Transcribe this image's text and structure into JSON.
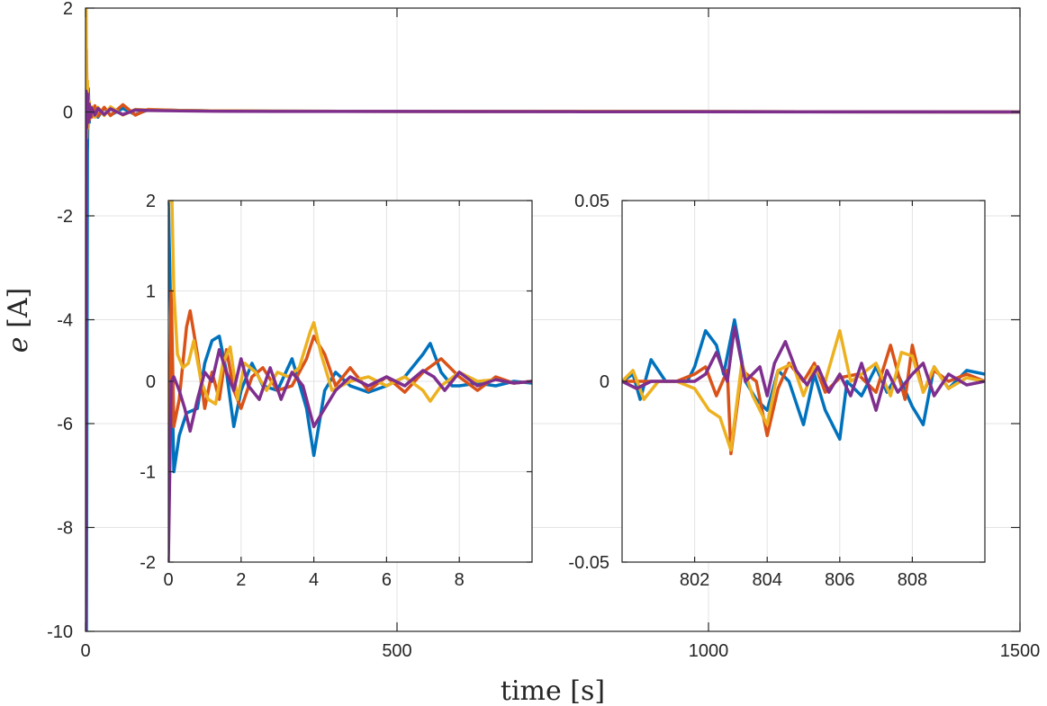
{
  "chart_data": [
    {
      "id": "main",
      "type": "line",
      "title": "",
      "xlabel": "time [s]",
      "ylabel_symbol": "e",
      "ylabel_unit": "[A]",
      "xlim": [
        0,
        1500
      ],
      "ylim": [
        -10,
        2
      ],
      "xticks": [
        0,
        500,
        1000,
        1500
      ],
      "xtick_labels": [
        "0",
        "500",
        "1000",
        "1500"
      ],
      "yticks": [
        -10,
        -8,
        -6,
        -4,
        -2,
        0,
        2
      ],
      "ytick_labels": [
        "-10",
        "-8",
        "-6",
        "-4",
        "-2",
        "0",
        "2"
      ],
      "grid": true,
      "series": [
        {
          "name": "series-blue",
          "color": "#0072BD",
          "x": [
            0,
            1.5,
            3,
            4.5,
            6,
            8,
            10,
            15,
            20,
            30,
            40,
            60,
            80,
            100,
            150,
            200,
            300,
            500,
            800,
            1500
          ],
          "y": [
            2,
            -10,
            -0.8,
            0.45,
            -0.2,
            0.1,
            -0.08,
            0.1,
            -0.1,
            0.08,
            -0.06,
            0.07,
            -0.05,
            0.04,
            0.03,
            0.02,
            0.015,
            0.01,
            0.01,
            0
          ]
        },
        {
          "name": "series-orange",
          "color": "#D95319",
          "x": [
            0,
            1.5,
            3,
            4.5,
            6,
            8,
            10,
            15,
            20,
            30,
            40,
            60,
            80,
            100,
            150,
            200,
            300,
            500,
            800,
            1500
          ],
          "y": [
            -1.5,
            1.2,
            -0.3,
            0.3,
            -0.15,
            0.1,
            -0.1,
            0.12,
            -0.08,
            0.09,
            -0.07,
            0.14,
            -0.06,
            0.05,
            0.03,
            0.02,
            0.015,
            0.01,
            0.01,
            0
          ]
        },
        {
          "name": "series-yellow",
          "color": "#EDB120",
          "x": [
            0,
            1,
            2,
            3,
            4.5,
            6,
            8,
            10,
            15,
            20,
            30,
            40,
            60,
            80,
            100,
            150,
            200,
            300,
            500,
            800,
            1500
          ],
          "y": [
            2,
            2,
            -0.5,
            0.6,
            -0.3,
            0.2,
            -0.1,
            0.1,
            -0.1,
            0.09,
            -0.07,
            0.1,
            -0.06,
            0.05,
            0.04,
            0.03,
            0.02,
            0.015,
            0.01,
            0.01,
            0
          ]
        },
        {
          "name": "series-purple",
          "color": "#7E2F8E",
          "x": [
            0,
            1,
            2,
            3,
            4.5,
            6,
            8,
            10,
            15,
            20,
            30,
            40,
            60,
            80,
            100,
            150,
            200,
            300,
            500,
            800,
            1500
          ],
          "y": [
            -10,
            0.4,
            -0.3,
            0.35,
            -0.2,
            0.15,
            -0.1,
            0.08,
            -0.06,
            0.07,
            -0.05,
            0.06,
            -0.05,
            0.04,
            0.03,
            0.02,
            0.015,
            0.01,
            0.01,
            0.005,
            0
          ]
        }
      ]
    },
    {
      "id": "inset1",
      "type": "line",
      "title": "",
      "xlim": [
        0,
        10
      ],
      "ylim": [
        -2,
        2
      ],
      "xticks": [
        0,
        2,
        4,
        6,
        8
      ],
      "xtick_labels": [
        "0",
        "2",
        "4",
        "6",
        "8"
      ],
      "yticks": [
        -2,
        -1,
        0,
        1,
        2
      ],
      "ytick_labels": [
        "-2",
        "-1",
        "0",
        "1",
        "2"
      ],
      "grid": true,
      "series": [
        {
          "name": "series-blue",
          "color": "#0072BD",
          "x": [
            0,
            0.08,
            0.15,
            0.3,
            0.5,
            0.8,
            1.0,
            1.2,
            1.4,
            1.6,
            1.8,
            2.0,
            2.3,
            2.6,
            3.0,
            3.4,
            3.8,
            4.0,
            4.3,
            4.6,
            5.0,
            5.5,
            6.0,
            6.5,
            7.0,
            7.2,
            7.5,
            7.8,
            8.0,
            8.5,
            9.0,
            9.5,
            10
          ],
          "y": [
            2,
            0.5,
            -1.0,
            -0.6,
            -0.35,
            -0.3,
            0.2,
            0.45,
            0.5,
            0.1,
            -0.5,
            -0.1,
            0.2,
            -0.05,
            -0.1,
            0.25,
            -0.3,
            -0.82,
            -0.1,
            0.1,
            -0.05,
            -0.12,
            -0.05,
            0.05,
            0.3,
            0.42,
            0.1,
            -0.05,
            -0.05,
            -0.02,
            -0.05,
            0.0,
            -0.02
          ]
        },
        {
          "name": "series-orange",
          "color": "#D95319",
          "x": [
            0,
            0.08,
            0.15,
            0.3,
            0.5,
            0.6,
            0.8,
            1.0,
            1.2,
            1.4,
            1.6,
            1.8,
            2.0,
            2.3,
            2.6,
            3.0,
            3.4,
            3.8,
            4.0,
            4.3,
            4.6,
            5.0,
            5.5,
            6.0,
            6.5,
            7.0,
            7.5,
            8.0,
            8.5,
            9.0,
            9.5,
            10
          ],
          "y": [
            -1.5,
            1.0,
            -0.5,
            -0.2,
            0.6,
            0.78,
            0.3,
            -0.3,
            0.1,
            -0.2,
            0.35,
            -0.1,
            -0.3,
            0.05,
            0.15,
            -0.1,
            -0.05,
            0.25,
            0.5,
            0.3,
            -0.05,
            0.15,
            -0.1,
            0.05,
            -0.12,
            0.1,
            0.25,
            0.05,
            -0.1,
            0.05,
            -0.02,
            0.0
          ]
        },
        {
          "name": "series-yellow",
          "color": "#EDB120",
          "x": [
            0,
            0.05,
            0.1,
            0.15,
            0.25,
            0.4,
            0.55,
            0.7,
            0.9,
            1.1,
            1.3,
            1.5,
            1.7,
            1.9,
            2.1,
            2.4,
            2.7,
            3.0,
            3.3,
            3.6,
            3.9,
            4.0,
            4.2,
            4.5,
            5.0,
            5.5,
            6.0,
            6.5,
            7.0,
            7.2,
            7.5,
            8.0,
            8.5,
            9.0,
            9.5,
            10
          ],
          "y": [
            2,
            2,
            2,
            1.0,
            0.3,
            0.15,
            0.2,
            0.45,
            0.0,
            -0.2,
            -0.25,
            0.2,
            0.38,
            -0.2,
            0.2,
            0.1,
            -0.1,
            0.1,
            0.05,
            0.15,
            0.55,
            0.65,
            0.3,
            -0.1,
            0.0,
            0.05,
            -0.05,
            0.05,
            -0.1,
            -0.22,
            -0.05,
            0.1,
            0.0,
            0.02,
            -0.02,
            0.0
          ]
        },
        {
          "name": "series-purple",
          "color": "#7E2F8E",
          "x": [
            0,
            0.08,
            0.15,
            0.3,
            0.45,
            0.6,
            0.8,
            1.0,
            1.2,
            1.4,
            1.6,
            1.8,
            2.0,
            2.2,
            2.5,
            2.8,
            3.1,
            3.4,
            3.7,
            4.0,
            4.3,
            4.6,
            5.0,
            5.5,
            6.0,
            6.5,
            7.0,
            7.3,
            7.6,
            8.0,
            8.5,
            9.0,
            9.5,
            10
          ],
          "y": [
            -2,
            0.0,
            0.05,
            -0.1,
            -0.3,
            -0.55,
            -0.2,
            0.1,
            0.0,
            0.35,
            0.1,
            -0.1,
            0.25,
            -0.05,
            -0.2,
            0.15,
            -0.2,
            0.1,
            -0.05,
            -0.5,
            -0.3,
            -0.1,
            0.05,
            -0.05,
            0.05,
            -0.05,
            0.12,
            0.05,
            -0.1,
            0.1,
            -0.05,
            0.02,
            -0.02,
            0.0
          ]
        }
      ]
    },
    {
      "id": "inset2",
      "type": "line",
      "title": "",
      "xlim": [
        800,
        810
      ],
      "ylim": [
        -0.05,
        0.05
      ],
      "xticks": [
        802,
        804,
        806,
        808
      ],
      "xtick_labels": [
        "802",
        "804",
        "806",
        "808"
      ],
      "yticks": [
        -0.05,
        0,
        0.05
      ],
      "ytick_labels": [
        "-0.05",
        "0",
        "0.05"
      ],
      "grid": true,
      "series": [
        {
          "name": "series-blue",
          "color": "#0072BD",
          "x": [
            800,
            800.3,
            800.5,
            800.8,
            801.2,
            801.5,
            801.8,
            802.0,
            802.3,
            802.6,
            802.8,
            803.1,
            803.4,
            803.7,
            804.0,
            804.3,
            804.6,
            805.0,
            805.3,
            805.6,
            806.0,
            806.2,
            806.6,
            807.0,
            807.3,
            807.6,
            808.0,
            808.3,
            808.6,
            809.0,
            809.5,
            810
          ],
          "y": [
            0,
            0.002,
            -0.005,
            0.006,
            0.0,
            0.0,
            0.0,
            0.004,
            0.014,
            0.01,
            0.002,
            0.017,
            0.0,
            -0.005,
            -0.008,
            0.003,
            0.0,
            -0.012,
            0.002,
            -0.008,
            -0.016,
            0.0,
            -0.004,
            0.004,
            -0.003,
            0.002,
            -0.007,
            -0.012,
            0.004,
            -0.002,
            0.003,
            0.002
          ]
        },
        {
          "name": "series-orange",
          "color": "#D95319",
          "x": [
            800,
            800.5,
            801.0,
            801.5,
            802.0,
            802.3,
            802.6,
            802.9,
            803.0,
            803.3,
            803.7,
            804.0,
            804.3,
            804.6,
            805.0,
            805.3,
            805.6,
            806.0,
            806.5,
            807.0,
            807.4,
            807.8,
            808.0,
            808.3,
            808.6,
            809.0,
            809.5,
            810
          ],
          "y": [
            0,
            0,
            0.0,
            0.0,
            0.002,
            0.004,
            -0.004,
            0.003,
            -0.02,
            0.003,
            0.0,
            -0.015,
            -0.002,
            0.005,
            0.0,
            0.005,
            -0.003,
            0.001,
            0.002,
            -0.003,
            0.01,
            -0.005,
            0.01,
            -0.003,
            0.003,
            0.0,
            0.002,
            0.0
          ]
        },
        {
          "name": "series-yellow",
          "color": "#EDB120",
          "x": [
            800,
            800.3,
            800.6,
            801.0,
            801.5,
            802.0,
            802.4,
            802.7,
            803.0,
            803.3,
            803.6,
            804.0,
            804.3,
            804.7,
            805.0,
            805.3,
            805.6,
            806.0,
            806.3,
            806.6,
            807.0,
            807.4,
            807.7,
            808.0,
            808.3,
            808.6,
            809.0,
            809.5,
            810
          ],
          "y": [
            0,
            0.003,
            -0.005,
            0.0,
            0.0,
            -0.002,
            -0.008,
            -0.01,
            -0.019,
            0.005,
            -0.004,
            -0.012,
            0.003,
            0.005,
            -0.004,
            0.004,
            0.0,
            0.014,
            0.0,
            0.002,
            0.005,
            -0.004,
            0.008,
            0.007,
            -0.003,
            0.004,
            -0.002,
            0.001,
            0.0
          ]
        },
        {
          "name": "series-purple",
          "color": "#7E2F8E",
          "x": [
            800,
            800.4,
            800.8,
            801.2,
            801.6,
            802.0,
            802.3,
            802.6,
            802.9,
            803.1,
            803.4,
            803.8,
            804.0,
            804.2,
            804.5,
            804.8,
            805.1,
            805.4,
            805.7,
            806.0,
            806.3,
            806.6,
            807.0,
            807.3,
            807.6,
            808.0,
            808.3,
            808.6,
            809.0,
            809.5,
            810
          ],
          "y": [
            0,
            -0.002,
            0.0,
            0.0,
            0.0,
            0.0,
            0.002,
            0.008,
            0.0,
            0.015,
            0.0,
            0.004,
            -0.004,
            0.005,
            0.011,
            0.003,
            -0.001,
            0.004,
            -0.003,
            0.002,
            -0.004,
            0.005,
            -0.008,
            0.003,
            -0.003,
            0.002,
            0.005,
            -0.004,
            0.002,
            -0.001,
            0.0
          ]
        }
      ]
    }
  ]
}
